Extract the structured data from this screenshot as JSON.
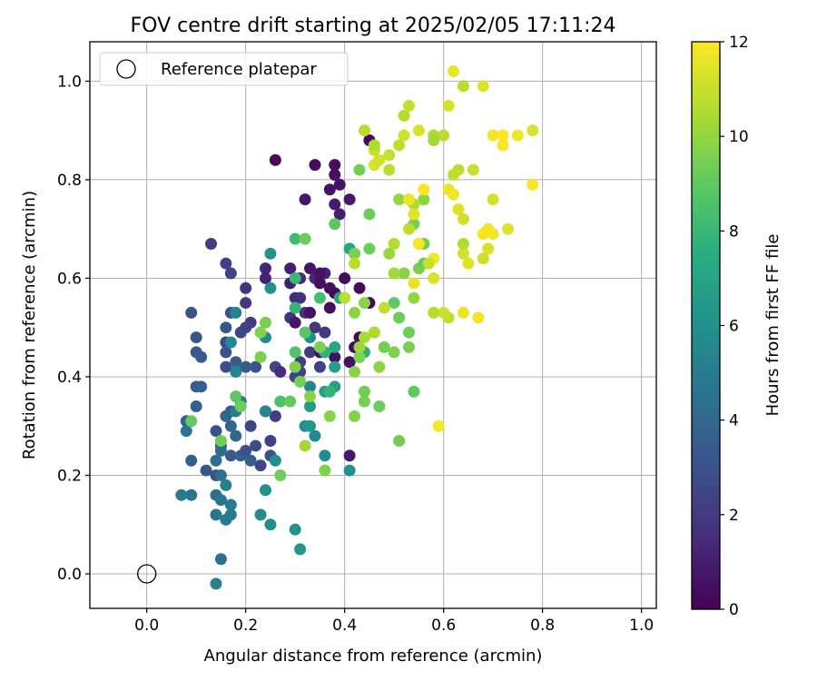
{
  "chart_data": {
    "type": "scatter",
    "title": "FOV centre drift starting at 2025/02/05 17:11:24",
    "xlabel": "Angular distance from reference (arcmin)",
    "ylabel": "Rotation from reference (arcmin)",
    "xlim": [
      -0.115,
      1.03
    ],
    "ylim": [
      -0.07,
      1.08
    ],
    "xticks": [
      "0.0",
      "0.2",
      "0.4",
      "0.6",
      "0.8",
      "1.0"
    ],
    "yticks": [
      "0.0",
      "0.2",
      "0.4",
      "0.6",
      "0.8",
      "1.0"
    ],
    "grid": true,
    "colormap": "viridis",
    "colorbar": {
      "label": "Hours from first FF file",
      "range": [
        0,
        12
      ],
      "ticks": [
        "0",
        "2",
        "4",
        "6",
        "8",
        "10",
        "12"
      ]
    },
    "legend": {
      "placement": "top-left",
      "entries": [
        "Reference platepar"
      ]
    },
    "reference_point": {
      "x": 0.0,
      "y": 0.0
    },
    "points": [
      [
        0.26,
        0.84,
        0.3
      ],
      [
        0.34,
        0.83,
        0.4
      ],
      [
        0.38,
        0.83,
        0.4
      ],
      [
        0.38,
        0.81,
        0.5
      ],
      [
        0.39,
        0.79,
        0.6
      ],
      [
        0.37,
        0.78,
        0.6
      ],
      [
        0.32,
        0.76,
        0.7
      ],
      [
        0.41,
        0.76,
        0.8
      ],
      [
        0.38,
        0.75,
        0.9
      ],
      [
        0.39,
        0.73,
        1.0
      ],
      [
        0.45,
        0.88,
        0.3
      ],
      [
        0.36,
        0.61,
        1.2
      ],
      [
        0.34,
        0.6,
        1.3
      ],
      [
        0.31,
        0.6,
        1.4
      ],
      [
        0.3,
        0.56,
        1.5
      ],
      [
        0.31,
        0.56,
        1.6
      ],
      [
        0.32,
        0.53,
        1.7
      ],
      [
        0.29,
        0.52,
        1.8
      ],
      [
        0.34,
        0.5,
        1.9
      ],
      [
        0.36,
        0.49,
        2.0
      ],
      [
        0.33,
        0.45,
        2.1
      ],
      [
        0.31,
        0.43,
        2.2
      ],
      [
        0.35,
        0.42,
        2.3
      ],
      [
        0.31,
        0.41,
        2.4
      ],
      [
        0.3,
        0.4,
        2.5
      ],
      [
        0.26,
        0.42,
        2.6
      ],
      [
        0.27,
        0.41,
        1.5
      ],
      [
        0.24,
        0.62,
        1.2
      ],
      [
        0.24,
        0.6,
        1.1
      ],
      [
        0.29,
        0.62,
        1.0
      ],
      [
        0.29,
        0.59,
        0.9
      ],
      [
        0.3,
        0.6,
        0.8
      ],
      [
        0.33,
        0.62,
        0.7
      ],
      [
        0.35,
        0.61,
        0.6
      ],
      [
        0.35,
        0.59,
        0.5
      ],
      [
        0.37,
        0.58,
        0.4
      ],
      [
        0.38,
        0.57,
        0.3
      ],
      [
        0.4,
        0.6,
        0.3
      ],
      [
        0.43,
        0.58,
        0.3
      ],
      [
        0.45,
        0.55,
        0.2
      ],
      [
        0.37,
        0.54,
        0.5
      ],
      [
        0.33,
        0.53,
        0.6
      ],
      [
        0.3,
        0.51,
        0.7
      ],
      [
        0.35,
        0.45,
        0.6
      ],
      [
        0.38,
        0.44,
        0.5
      ],
      [
        0.41,
        0.43,
        0.5
      ],
      [
        0.41,
        0.24,
        0.8
      ],
      [
        0.42,
        0.46,
        0.4
      ],
      [
        0.43,
        0.48,
        0.3
      ],
      [
        0.2,
        0.58,
        1.8
      ],
      [
        0.2,
        0.55,
        2.0
      ],
      [
        0.13,
        0.67,
        2.1
      ],
      [
        0.16,
        0.63,
        2.3
      ],
      [
        0.17,
        0.61,
        2.4
      ],
      [
        0.21,
        0.51,
        2.1
      ],
      [
        0.2,
        0.5,
        2.3
      ],
      [
        0.19,
        0.49,
        2.5
      ],
      [
        0.16,
        0.47,
        2.6
      ],
      [
        0.16,
        0.42,
        2.8
      ],
      [
        0.16,
        0.45,
        3.0
      ],
      [
        0.17,
        0.53,
        3.1
      ],
      [
        0.16,
        0.5,
        3.2
      ],
      [
        0.09,
        0.53,
        3.0
      ],
      [
        0.1,
        0.48,
        3.2
      ],
      [
        0.1,
        0.45,
        3.3
      ],
      [
        0.11,
        0.44,
        3.4
      ],
      [
        0.1,
        0.38,
        3.5
      ],
      [
        0.11,
        0.38,
        3.6
      ],
      [
        0.1,
        0.34,
        3.7
      ],
      [
        0.08,
        0.31,
        3.8
      ],
      [
        0.09,
        0.23,
        3.5
      ],
      [
        0.12,
        0.21,
        3.2
      ],
      [
        0.14,
        0.2,
        3.0
      ],
      [
        0.14,
        0.29,
        3.1
      ],
      [
        0.15,
        0.26,
        3.3
      ],
      [
        0.17,
        0.24,
        3.4
      ],
      [
        0.19,
        0.24,
        3.6
      ],
      [
        0.21,
        0.23,
        3.7
      ],
      [
        0.2,
        0.25,
        2.9
      ],
      [
        0.22,
        0.26,
        2.7
      ],
      [
        0.21,
        0.3,
        2.5
      ],
      [
        0.25,
        0.27,
        2.3
      ],
      [
        0.26,
        0.32,
        2.2
      ],
      [
        0.24,
        0.33,
        2.0
      ],
      [
        0.23,
        0.22,
        2.6
      ],
      [
        0.25,
        0.24,
        2.9
      ],
      [
        0.22,
        0.42,
        3.1
      ],
      [
        0.2,
        0.42,
        3.4
      ],
      [
        0.18,
        0.43,
        3.5
      ],
      [
        0.17,
        0.33,
        3.7
      ],
      [
        0.16,
        0.32,
        3.9
      ],
      [
        0.17,
        0.3,
        4.0
      ],
      [
        0.18,
        0.28,
        4.1
      ],
      [
        0.15,
        0.25,
        4.2
      ],
      [
        0.14,
        0.23,
        4.3
      ],
      [
        0.15,
        0.2,
        4.4
      ],
      [
        0.14,
        0.16,
        4.5
      ],
      [
        0.15,
        0.15,
        4.6
      ],
      [
        0.14,
        0.12,
        4.7
      ],
      [
        0.16,
        0.11,
        4.8
      ],
      [
        0.17,
        0.12,
        4.9
      ],
      [
        0.15,
        0.03,
        4.4
      ],
      [
        0.09,
        0.16,
        4.6
      ],
      [
        0.07,
        0.16,
        4.9
      ],
      [
        0.08,
        0.29,
        4.7
      ],
      [
        0.17,
        0.14,
        5.0
      ],
      [
        0.14,
        -0.02,
        5.3
      ],
      [
        0.16,
        0.18,
        5.2
      ],
      [
        0.18,
        0.33,
        5.0
      ],
      [
        0.19,
        0.35,
        5.1
      ],
      [
        0.18,
        0.41,
        5.3
      ],
      [
        0.17,
        0.47,
        5.5
      ],
      [
        0.18,
        0.53,
        5.4
      ],
      [
        0.23,
        0.12,
        5.8
      ],
      [
        0.24,
        0.17,
        6.0
      ],
      [
        0.25,
        0.1,
        5.9
      ],
      [
        0.3,
        0.09,
        6.1
      ],
      [
        0.31,
        0.05,
        6.3
      ],
      [
        0.26,
        0.23,
        6.0
      ],
      [
        0.24,
        0.33,
        5.6
      ],
      [
        0.24,
        0.48,
        5.8
      ],
      [
        0.25,
        0.58,
        6.1
      ],
      [
        0.25,
        0.65,
        6.2
      ],
      [
        0.32,
        0.3,
        5.8
      ],
      [
        0.33,
        0.3,
        6.3
      ],
      [
        0.33,
        0.34,
        6.5
      ],
      [
        0.34,
        0.28,
        5.6
      ],
      [
        0.33,
        0.38,
        5.4
      ],
      [
        0.36,
        0.24,
        5.8
      ],
      [
        0.41,
        0.21,
        6.1
      ],
      [
        0.33,
        0.48,
        6.0
      ],
      [
        0.36,
        0.37,
        6.6
      ],
      [
        0.38,
        0.38,
        6.8
      ],
      [
        0.38,
        0.42,
        6.7
      ],
      [
        0.39,
        0.56,
        6.9
      ],
      [
        0.38,
        0.46,
        7.0
      ],
      [
        0.41,
        0.66,
        7.1
      ],
      [
        0.42,
        0.65,
        7.3
      ],
      [
        0.43,
        0.44,
        7.5
      ],
      [
        0.44,
        0.45,
        7.6
      ],
      [
        0.37,
        0.37,
        7.8
      ],
      [
        0.36,
        0.45,
        7.7
      ],
      [
        0.3,
        0.54,
        7.8
      ],
      [
        0.3,
        0.6,
        8.0
      ],
      [
        0.3,
        0.68,
        8.2
      ],
      [
        0.27,
        0.35,
        8.5
      ],
      [
        0.3,
        0.45,
        8.6
      ],
      [
        0.32,
        0.49,
        8.8
      ],
      [
        0.32,
        0.68,
        9.2
      ],
      [
        0.35,
        0.56,
        8.3
      ],
      [
        0.38,
        0.71,
        8.9
      ],
      [
        0.18,
        0.36,
        8.9
      ],
      [
        0.19,
        0.34,
        9.3
      ],
      [
        0.09,
        0.31,
        9.1
      ],
      [
        0.15,
        0.27,
        9.4
      ],
      [
        0.23,
        0.44,
        9.6
      ],
      [
        0.23,
        0.49,
        9.7
      ],
      [
        0.24,
        0.51,
        9.5
      ],
      [
        0.27,
        0.2,
        9.3
      ],
      [
        0.29,
        0.35,
        9.1
      ],
      [
        0.31,
        0.39,
        9.4
      ],
      [
        0.3,
        0.42,
        9.6
      ],
      [
        0.33,
        0.36,
        9.8
      ],
      [
        0.32,
        0.26,
        10.3
      ],
      [
        0.36,
        0.21,
        9.6
      ],
      [
        0.37,
        0.32,
        9.8
      ],
      [
        0.35,
        0.46,
        9.5
      ],
      [
        0.42,
        0.32,
        9.7
      ],
      [
        0.44,
        0.35,
        9.5
      ],
      [
        0.44,
        0.37,
        9.3
      ],
      [
        0.43,
        0.44,
        9.6
      ],
      [
        0.42,
        0.53,
        9.9
      ],
      [
        0.44,
        0.55,
        9.8
      ],
      [
        0.46,
        0.49,
        9.6
      ],
      [
        0.47,
        0.34,
        9.2
      ],
      [
        0.48,
        0.46,
        9.4
      ],
      [
        0.5,
        0.45,
        9.6
      ],
      [
        0.51,
        0.27,
        9.4
      ],
      [
        0.5,
        0.55,
        9.0
      ],
      [
        0.51,
        0.52,
        9.2
      ],
      [
        0.53,
        0.46,
        9.5
      ],
      [
        0.53,
        0.49,
        9.3
      ],
      [
        0.54,
        0.37,
        9.0
      ],
      [
        0.52,
        0.61,
        9.8
      ],
      [
        0.54,
        0.56,
        10.0
      ],
      [
        0.55,
        0.62,
        9.5
      ],
      [
        0.56,
        0.63,
        9.2
      ],
      [
        0.56,
        0.67,
        9.3
      ],
      [
        0.54,
        0.71,
        9.5
      ],
      [
        0.56,
        0.76,
        9.9
      ],
      [
        0.45,
        0.66,
        9.2
      ],
      [
        0.45,
        0.73,
        9.3
      ],
      [
        0.43,
        0.82,
        9.4
      ],
      [
        0.42,
        0.65,
        9.6
      ],
      [
        0.42,
        0.41,
        9.8
      ],
      [
        0.43,
        0.46,
        10.2
      ],
      [
        0.44,
        0.48,
        10.4
      ],
      [
        0.46,
        0.49,
        10.5
      ],
      [
        0.47,
        0.42,
        9.9
      ],
      [
        0.4,
        0.56,
        10.8
      ],
      [
        0.42,
        0.63,
        10.7
      ],
      [
        0.48,
        0.54,
        10.9
      ],
      [
        0.5,
        0.61,
        10.3
      ],
      [
        0.49,
        0.65,
        10.1
      ],
      [
        0.5,
        0.67,
        10.6
      ],
      [
        0.51,
        0.76,
        10.0
      ],
      [
        0.53,
        0.76,
        10.4
      ],
      [
        0.54,
        0.75,
        10.6
      ],
      [
        0.53,
        0.7,
        10.8
      ],
      [
        0.55,
        0.67,
        11.2
      ],
      [
        0.49,
        0.82,
        10.8
      ],
      [
        0.49,
        0.85,
        10.9
      ],
      [
        0.46,
        0.83,
        11.3
      ],
      [
        0.46,
        0.86,
        11.0
      ],
      [
        0.46,
        0.87,
        10.5
      ],
      [
        0.44,
        0.9,
        10.7
      ],
      [
        0.51,
        0.87,
        10.8
      ],
      [
        0.52,
        0.89,
        11.2
      ],
      [
        0.52,
        0.93,
        10.6
      ],
      [
        0.53,
        0.95,
        10.9
      ],
      [
        0.55,
        0.9,
        11.3
      ],
      [
        0.58,
        0.89,
        10.5
      ],
      [
        0.6,
        0.89,
        10.8
      ],
      [
        0.61,
        0.95,
        11.2
      ],
      [
        0.64,
        0.99,
        10.7
      ],
      [
        0.62,
        1.02,
        11.6
      ],
      [
        0.68,
        0.99,
        11.4
      ],
      [
        0.7,
        0.89,
        11.8
      ],
      [
        0.72,
        0.89,
        12.0
      ],
      [
        0.75,
        0.89,
        11.7
      ],
      [
        0.78,
        0.9,
        11.3
      ],
      [
        0.72,
        0.87,
        11.9
      ],
      [
        0.7,
        0.76,
        11.2
      ],
      [
        0.63,
        0.82,
        10.8
      ],
      [
        0.62,
        0.81,
        10.9
      ],
      [
        0.66,
        0.82,
        11.0
      ],
      [
        0.61,
        0.78,
        11.6
      ],
      [
        0.62,
        0.77,
        11.8
      ],
      [
        0.63,
        0.74,
        11.4
      ],
      [
        0.64,
        0.72,
        11.2
      ],
      [
        0.56,
        0.78,
        11.9
      ],
      [
        0.53,
        0.76,
        11.7
      ],
      [
        0.54,
        0.73,
        11.5
      ],
      [
        0.58,
        0.64,
        11.8
      ],
      [
        0.57,
        0.63,
        11.0
      ],
      [
        0.58,
        0.6,
        11.3
      ],
      [
        0.6,
        0.53,
        11.1
      ],
      [
        0.61,
        0.52,
        10.9
      ],
      [
        0.58,
        0.53,
        10.6
      ],
      [
        0.64,
        0.53,
        11.6
      ],
      [
        0.67,
        0.52,
        11.8
      ],
      [
        0.64,
        0.65,
        11.2
      ],
      [
        0.64,
        0.67,
        10.6
      ],
      [
        0.65,
        0.63,
        11.5
      ],
      [
        0.69,
        0.66,
        11.3
      ],
      [
        0.68,
        0.64,
        11.1
      ],
      [
        0.68,
        0.69,
        11.9
      ],
      [
        0.69,
        0.7,
        11.7
      ],
      [
        0.7,
        0.69,
        11.8
      ],
      [
        0.73,
        0.7,
        11.4
      ],
      [
        0.78,
        0.79,
        11.9
      ],
      [
        0.54,
        0.59,
        11.6
      ],
      [
        0.55,
        0.67,
        11.9
      ],
      [
        0.59,
        0.3,
        11.8
      ],
      [
        0.58,
        0.88,
        10.3
      ],
      [
        0.47,
        0.84,
        11.2
      ]
    ]
  }
}
